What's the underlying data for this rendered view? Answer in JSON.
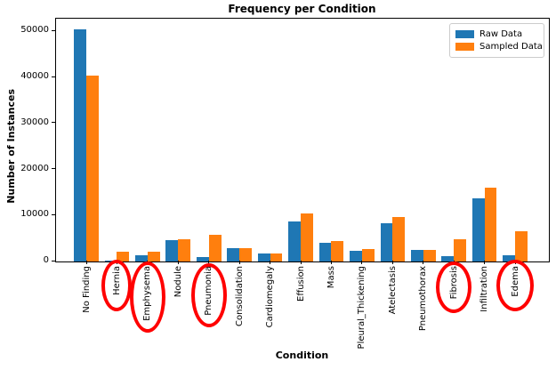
{
  "chart_data": {
    "type": "bar",
    "title": "Frequency per Condition",
    "xlabel": "Condition",
    "ylabel": "Number of Instances",
    "categories": [
      "No Finding",
      "Hernia",
      "Emphysema",
      "Nodule",
      "Pneumonia",
      "Consolidation",
      "Cardiomegaly",
      "Effusion",
      "Mass",
      "Pleural_Thickening",
      "Atelectasis",
      "Pneumothorax",
      "Fibrosis",
      "Infiltration",
      "Edema"
    ],
    "series": [
      {
        "name": "Raw Data",
        "color": "#1f77b4",
        "values": [
          50500,
          140,
          1400,
          4700,
          880,
          2850,
          1700,
          8650,
          4030,
          2240,
          8280,
          2600,
          1250,
          13800,
          1300
        ]
      },
      {
        "name": "Sampled Data",
        "color": "#ff7f0e",
        "values": [
          40500,
          2200,
          2200,
          4900,
          5800,
          2950,
          1800,
          10400,
          4500,
          2800,
          9600,
          2600,
          4900,
          16000,
          6600
        ]
      }
    ],
    "yticks": [
      0,
      10000,
      20000,
      30000,
      40000,
      50000
    ],
    "ylim": [
      0,
      52800
    ],
    "grid": false,
    "legend_position": "upper right",
    "annotations": {
      "shape": "ellipse",
      "color": "#ff0000",
      "circled_categories": [
        "Hernia",
        "Emphysema",
        "Pneumonia",
        "Fibrosis",
        "Edema"
      ]
    }
  }
}
